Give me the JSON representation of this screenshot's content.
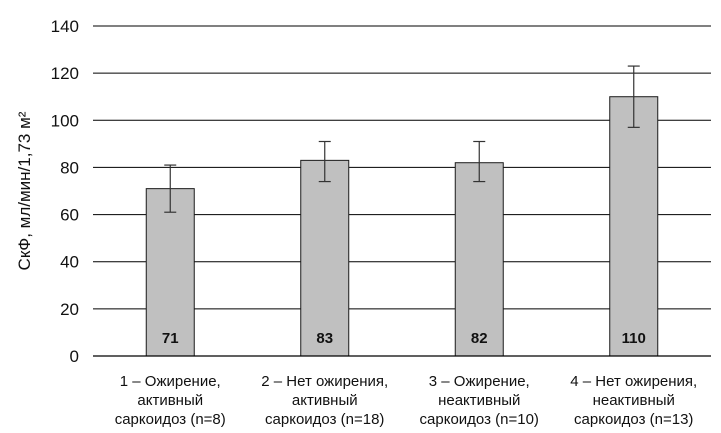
{
  "chart_data": {
    "type": "bar",
    "title": "",
    "xlabel": "",
    "ylabel": "СкФ, мл/мин/1,73 м²",
    "ylim": [
      0,
      140
    ],
    "yticks": [
      0,
      20,
      40,
      60,
      80,
      100,
      120,
      140
    ],
    "grid": true,
    "legend": "none",
    "categories": [
      [
        "1 – Ожирение,",
        "активный",
        "саркоидоз (n=8)"
      ],
      [
        "2 – Нет ожирения,",
        "активный",
        "саркоидоз (n=18)"
      ],
      [
        "3 – Ожирение,",
        "неактивный",
        "саркоидоз (n=10)"
      ],
      [
        "4 – Нет ожирения,",
        "неактивный",
        "саркоидоз (n=13)"
      ]
    ],
    "values": [
      71,
      83,
      82,
      110
    ],
    "value_labels": [
      "71",
      "83",
      "82",
      "110"
    ],
    "error_bars": [
      {
        "low": 61,
        "high": 81
      },
      {
        "low": 74,
        "high": 91
      },
      {
        "low": 74,
        "high": 91
      },
      {
        "low": 97,
        "high": 123
      }
    ],
    "colors": {
      "bar_fill": "#c0c0c0",
      "bar_stroke": "#1a1a1a",
      "grid": "#000000",
      "error_bar": "#333333"
    }
  }
}
